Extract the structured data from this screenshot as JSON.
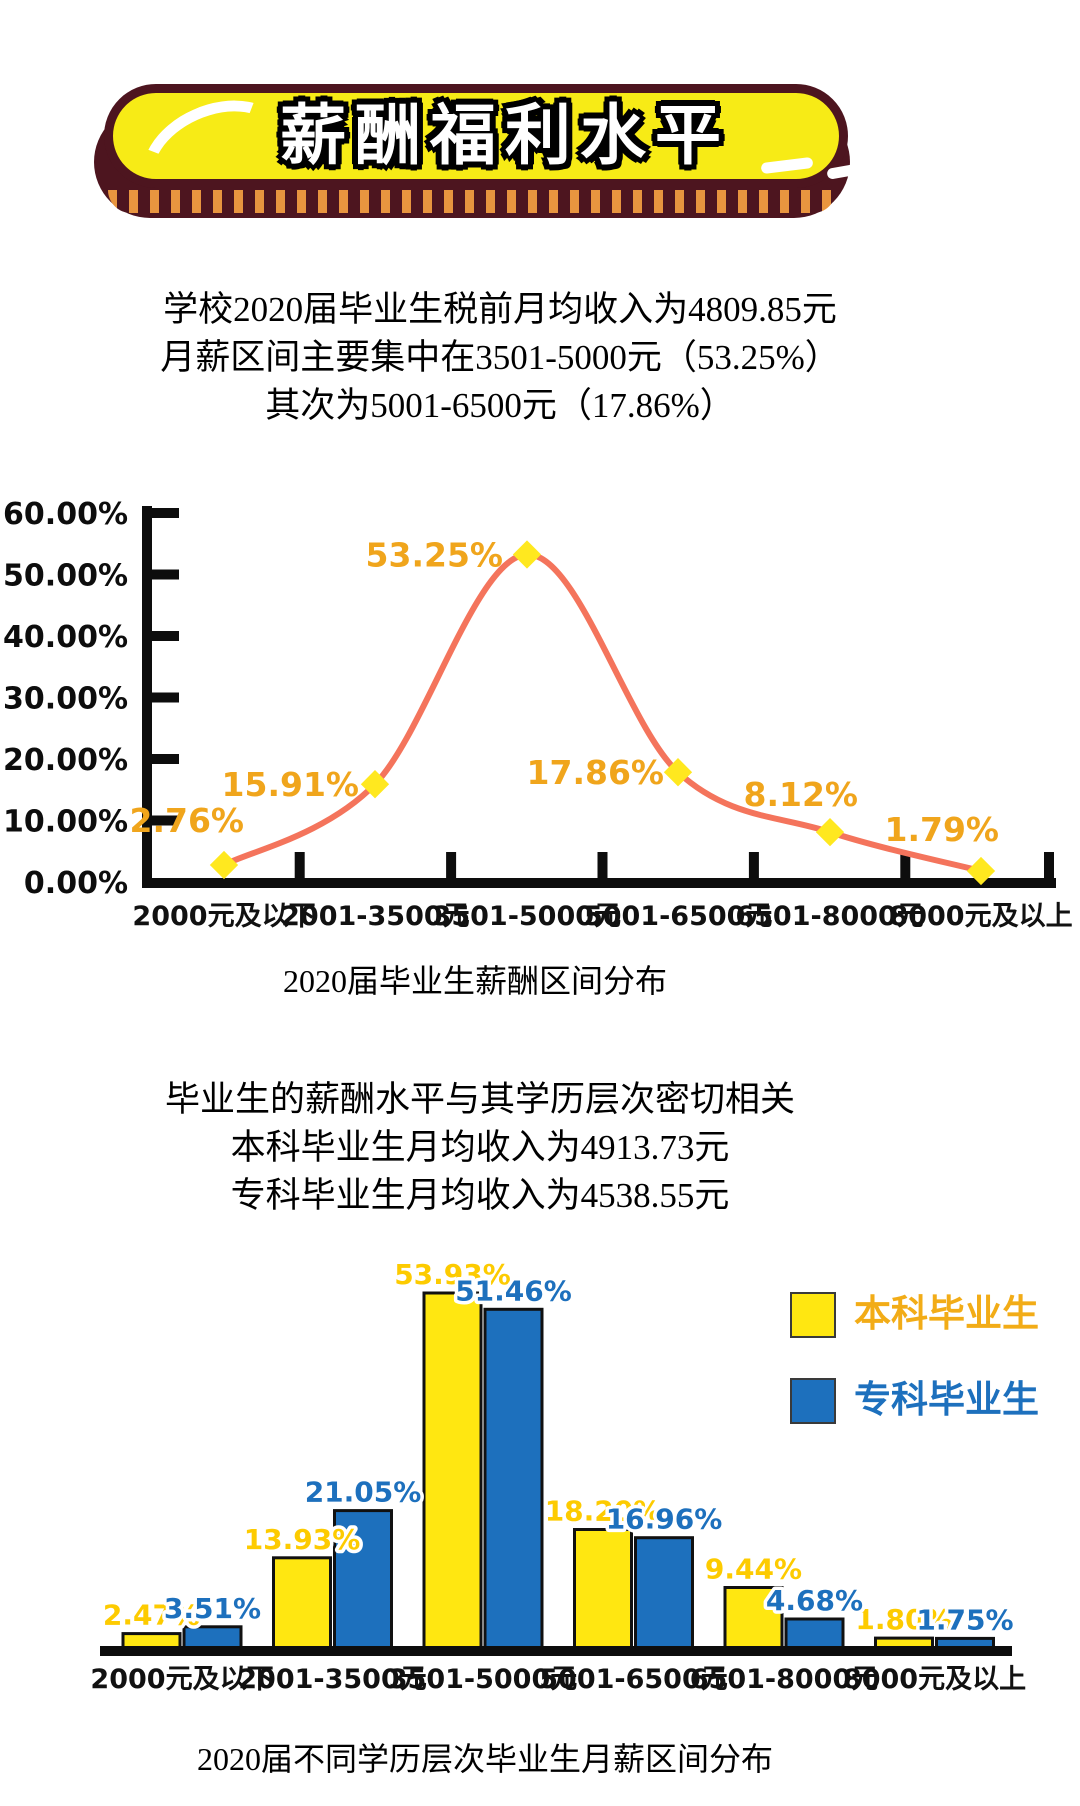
{
  "banner": {
    "title": "薪酬福利水平"
  },
  "intro": {
    "lines": [
      "学校2020届毕业生税前月均收入为4809.85元",
      "月薪区间主要集中在3501-5000元（53.25%）",
      "其次为5001-6500元（17.86%）"
    ]
  },
  "middle": {
    "lines": [
      "毕业生的薪酬水平与其学历层次密切相关",
      "本科毕业生月均收入为4913.73元",
      "专科毕业生月均收入为4538.55元"
    ]
  },
  "chart_data": [
    {
      "type": "line",
      "title": "2020届毕业生薪酬区间分布",
      "categories": [
        "2000元及以下",
        "2001-3500元",
        "3501-5000元",
        "5001-6500元",
        "6501-8000元",
        "8000元及以上"
      ],
      "values": [
        2.76,
        15.91,
        53.25,
        17.86,
        8.12,
        1.79
      ],
      "labels": [
        "2.76%",
        "15.91%",
        "53.25%",
        "17.86%",
        "8.12%",
        "1.79%"
      ],
      "yticks": [
        "60.00%",
        "50.00%",
        "40.00%",
        "30.00%",
        "20.00%",
        "10.00%",
        "0.00%"
      ],
      "ylim": [
        0,
        60
      ],
      "grid": "off",
      "line_color": "#F4745C",
      "marker_color": "#FFE81F",
      "label_color": "#F0A51C",
      "axis_color": "#0d0d0d"
    },
    {
      "type": "bar",
      "title": "2020届不同学历层次毕业生月薪区间分布",
      "categories": [
        "2000元及以下",
        "2001-3500元",
        "3501-5000元",
        "5001-6500元",
        "6501-8000元",
        "8000元及以上"
      ],
      "series": [
        {
          "name": "本科毕业生",
          "color": "#FFE711",
          "label_color": "#FDCB00",
          "text_color": "#F2AC17",
          "values": [
            2.47,
            13.93,
            53.93,
            18.2,
            9.44,
            1.8
          ],
          "labels": [
            "2.47%",
            "13.93%",
            "53.93%",
            "18.20%",
            "9.44%",
            "1.80%"
          ]
        },
        {
          "name": "专科毕业生",
          "color": "#1D70BD",
          "label_color": "#1D70BD",
          "text_color": "#1D70BD",
          "values": [
            3.51,
            21.05,
            51.46,
            16.96,
            4.68,
            1.75
          ],
          "labels": [
            "3.51%",
            "21.05%",
            "51.46%",
            "16.96%",
            "4.68%",
            "1.75%"
          ]
        }
      ],
      "ylim": [
        0,
        60
      ],
      "grid": "off",
      "legend_position": "top-right",
      "axis_color": "#0d0d0d"
    }
  ]
}
